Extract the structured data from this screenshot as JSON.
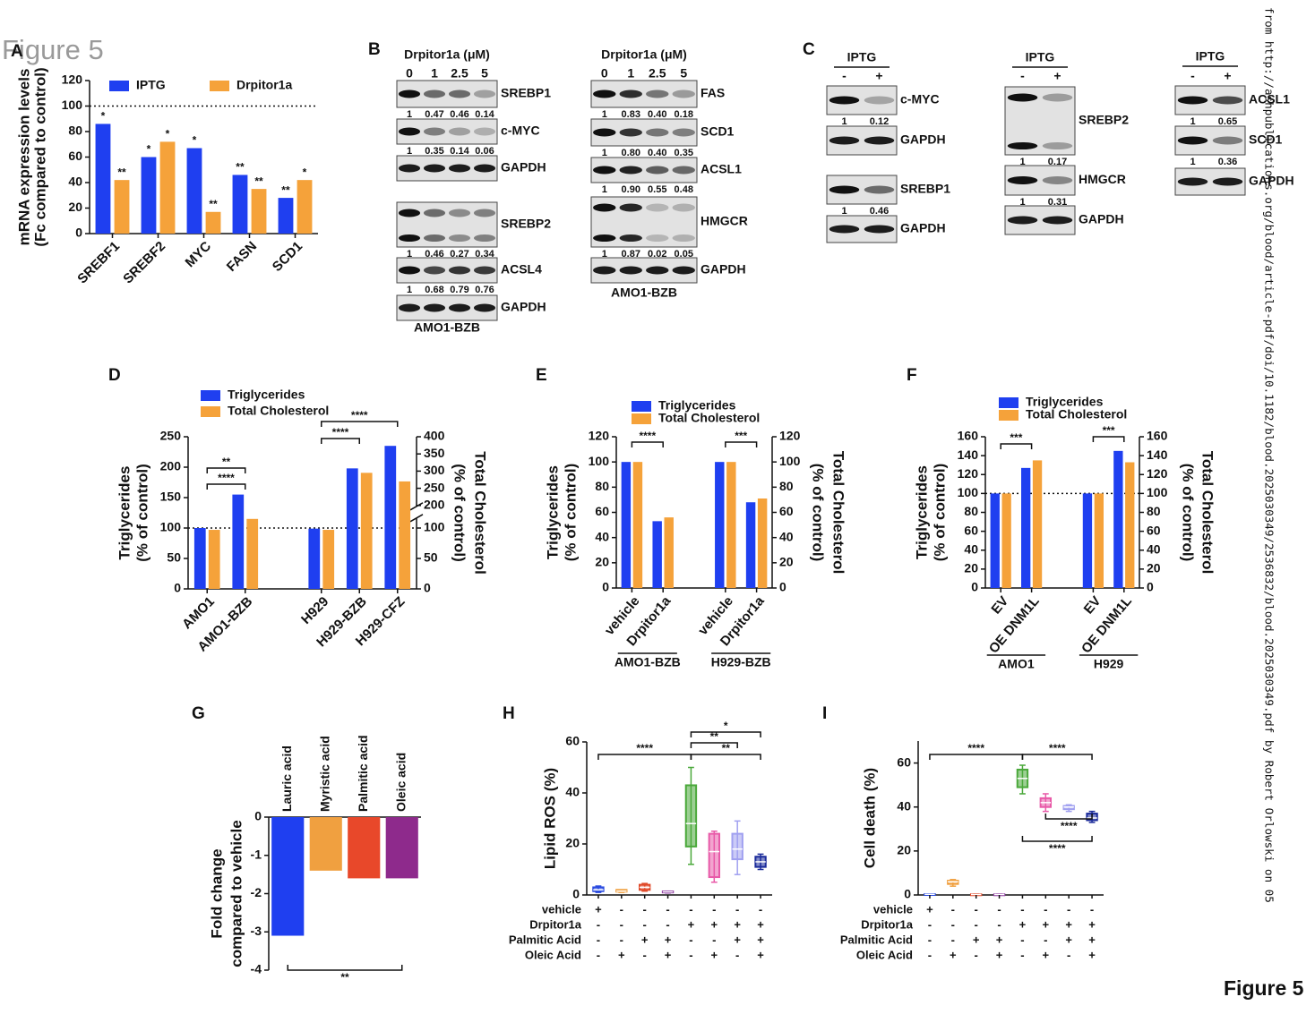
{
  "figure_title": "Figure 5",
  "figure_footer": "Figure 5",
  "watermark": "from http://ashpublications.org/blood/article-pdf/doi/10.1182/blood.2025030349/2536832/blood.2025030349.pdf by Robert Orlowski on 05",
  "panel_labels": [
    "A",
    "B",
    "C",
    "D",
    "E",
    "F",
    "G",
    "H",
    "I"
  ],
  "blots": [
    {
      "header": "Drpitor1a (μM)",
      "lanes": [
        "0",
        "1",
        "2.5",
        "5"
      ],
      "cell_line": "AMO1-BZB",
      "rows": [
        {
          "protein": "SREBP1",
          "quant": [
            "1",
            "0.47",
            "0.46",
            "0.14"
          ]
        },
        {
          "protein": "c-MYC",
          "quant": [
            "1",
            "0.35",
            "0.14",
            "0.06"
          ]
        },
        {
          "protein": "GAPDH"
        },
        {
          "protein": "SREBP2",
          "quant": [
            "1",
            "0.46",
            "0.27",
            "0.34"
          ]
        },
        {
          "protein": "ACSL4",
          "quant": [
            "1",
            "0.68",
            "0.79",
            "0.76"
          ]
        },
        {
          "protein": "GAPDH"
        }
      ]
    },
    {
      "header": "Drpitor1a (μM)",
      "lanes": [
        "0",
        "1",
        "2.5",
        "5"
      ],
      "cell_line": "AMO1-BZB",
      "rows": [
        {
          "protein": "FAS",
          "quant": [
            "1",
            "0.83",
            "0.40",
            "0.18"
          ]
        },
        {
          "protein": "SCD1",
          "quant": [
            "1",
            "0.80",
            "0.40",
            "0.35"
          ]
        },
        {
          "protein": "ACSL1",
          "quant": [
            "1",
            "0.90",
            "0.55",
            "0.48"
          ]
        },
        {
          "protein": "HMGCR",
          "quant": [
            "1",
            "0.87",
            "0.02",
            "0.05"
          ]
        },
        {
          "protein": "GAPDH"
        }
      ]
    },
    {
      "header": "IPTG",
      "lanes": [
        "-",
        "+"
      ],
      "rows": [
        {
          "protein": "c-MYC",
          "quant": [
            "1",
            "0.12"
          ]
        },
        {
          "protein": "GAPDH"
        },
        {
          "protein": "SREBP1",
          "quant": [
            "1",
            "0.46"
          ]
        },
        {
          "protein": "GAPDH"
        }
      ]
    },
    {
      "header": "IPTG",
      "lanes": [
        "-",
        "+"
      ],
      "rows": [
        {
          "protein": "SREBP2",
          "quant": [
            "1",
            "0.17"
          ]
        },
        {
          "protein": "HMGCR",
          "quant": [
            "1",
            "0.31"
          ]
        },
        {
          "protein": "GAPDH"
        }
      ]
    },
    {
      "header": "IPTG",
      "lanes": [
        "-",
        "+"
      ],
      "rows": [
        {
          "protein": "ACSL1",
          "quant": [
            "1",
            "0.65"
          ]
        },
        {
          "protein": "SCD1",
          "quant": [
            "1",
            "0.36"
          ]
        },
        {
          "protein": "GAPDH"
        }
      ]
    }
  ],
  "chart_data": [
    {
      "type": "bar",
      "y_label": [
        "mRNA expression levels",
        "(Fc compared to control)"
      ],
      "categories": [
        "SREBF1",
        "SREBF2",
        "MYC",
        "FASN",
        "SCD1"
      ],
      "series": [
        {
          "name": "IPTG",
          "color": "#1f3ff0",
          "values": [
            86,
            60,
            67,
            46,
            28
          ],
          "significance": [
            "*",
            "*",
            "*",
            "**",
            "**"
          ]
        },
        {
          "name": "Drpitor1a",
          "color": "#f5a23a",
          "values": [
            42,
            72,
            17,
            35,
            42
          ],
          "significance": [
            "**",
            "*",
            "**",
            "**",
            "*"
          ]
        }
      ],
      "ylim": [
        0,
        120
      ],
      "yticks": [
        0,
        20,
        40,
        60,
        80,
        100,
        120
      ],
      "ref_line": 100
    },
    {
      "type": "bar",
      "y_label": [
        "Triglycerides",
        "(% of control)"
      ],
      "y2_label": [
        "Total Cholesterol",
        "(% of control)"
      ],
      "categories": [
        "AMO1",
        "AMO1-BZB",
        null,
        "H929",
        "H929-BZB",
        "H929-CFZ"
      ],
      "series": [
        {
          "name": "Triglycerides",
          "color": "#1f3ff0",
          "values": [
            100,
            155,
            null,
            99,
            198,
            235
          ]
        },
        {
          "name": "Total Cholesterol",
          "color": "#f5a23a",
          "axis": "y2",
          "values": [
            97,
            115,
            null,
            97,
            295,
            270
          ]
        }
      ],
      "ylim": [
        0,
        250
      ],
      "yticks": [
        0,
        50,
        100,
        150,
        200,
        250
      ],
      "y2lim": [
        0,
        400
      ],
      "y2ticks": [
        0,
        50,
        100,
        200,
        250,
        300,
        350,
        400
      ],
      "y2break": [
        115,
        200
      ],
      "ref_line": 100,
      "annotations": [
        "****",
        "**",
        "****",
        "****"
      ]
    },
    {
      "type": "bar",
      "y_label": [
        "Triglycerides",
        "(% of control)"
      ],
      "y2_label": [
        "Total Cholesterol",
        "(% of control)"
      ],
      "categories": [
        "vehicle",
        "Drpitor1a",
        null,
        "vehicle",
        "Drpitor1a"
      ],
      "groups": [
        "AMO1-BZB",
        "H929-BZB"
      ],
      "series": [
        {
          "name": "Triglycerides",
          "color": "#1f3ff0",
          "values": [
            100,
            53,
            null,
            100,
            68
          ]
        },
        {
          "name": "Total Cholesterol",
          "color": "#f5a23a",
          "axis": "y2",
          "values": [
            100,
            56,
            null,
            100,
            71
          ]
        }
      ],
      "ylim": [
        0,
        120
      ],
      "yticks": [
        0,
        20,
        40,
        60,
        80,
        100,
        120
      ],
      "y2lim": [
        0,
        120
      ],
      "y2ticks": [
        0,
        20,
        40,
        60,
        80,
        100,
        120
      ],
      "annotations": [
        "****",
        "***"
      ]
    },
    {
      "type": "bar",
      "y_label": [
        "Triglycerides",
        "(% of control)"
      ],
      "y2_label": [
        "Total Cholesterol",
        "(% of control)"
      ],
      "categories": [
        "EV",
        "OE DNM1L",
        null,
        "EV",
        "OE DNM1L"
      ],
      "groups": [
        "AMO1",
        "H929"
      ],
      "series": [
        {
          "name": "Triglycerides",
          "color": "#1f3ff0",
          "values": [
            100,
            127,
            null,
            100,
            145
          ]
        },
        {
          "name": "Total Cholesterol",
          "color": "#f5a23a",
          "axis": "y2",
          "values": [
            100,
            135,
            null,
            100,
            133
          ]
        }
      ],
      "ylim": [
        0,
        160
      ],
      "yticks": [
        0,
        20,
        40,
        60,
        80,
        100,
        120,
        140,
        160
      ],
      "y2lim": [
        0,
        160
      ],
      "y2ticks": [
        0,
        20,
        40,
        60,
        80,
        100,
        120,
        140,
        160
      ],
      "ref_line": 100,
      "annotations": [
        "***",
        "***"
      ]
    },
    {
      "type": "bar",
      "y_label": [
        "Fold change",
        "compared to vehicle"
      ],
      "categories": [
        "Lauric acid",
        "Myristic acid",
        "Palmitic acid",
        "Oleic acid"
      ],
      "values": [
        -3.1,
        -1.4,
        -1.6,
        -1.6
      ],
      "colors": [
        "#1f3ff0",
        "#f0a040",
        "#e8482a",
        "#8e2a8c"
      ],
      "ylim": [
        -4,
        0
      ],
      "yticks": [
        -4,
        -3,
        -2,
        -1,
        0
      ],
      "annotations": [
        "**"
      ]
    },
    {
      "type": "box",
      "y_label": [
        "Lipid ROS (%)"
      ],
      "boxes": [
        {
          "color": "#2a4be0",
          "min": 1,
          "q1": 1.5,
          "median": 2,
          "q3": 3,
          "max": 3.5
        },
        {
          "color": "#f0a040",
          "min": 1,
          "q1": 1.3,
          "median": 1.5,
          "q3": 2,
          "max": 2
        },
        {
          "color": "#e04a2a",
          "min": 1.5,
          "q1": 2,
          "median": 3,
          "q3": 4,
          "max": 4.5
        },
        {
          "color": "#8e3aa0",
          "min": 0.8,
          "q1": 1,
          "median": 1.2,
          "q3": 1.4,
          "max": 1.5
        },
        {
          "color": "#4aa83a",
          "min": 12,
          "q1": 19,
          "median": 28,
          "q3": 43,
          "max": 50
        },
        {
          "color": "#e85aa8",
          "min": 5,
          "q1": 7,
          "median": 17,
          "q3": 24,
          "max": 25
        },
        {
          "color": "#a0a0f0",
          "min": 8,
          "q1": 14,
          "median": 18,
          "q3": 24,
          "max": 29
        },
        {
          "color": "#1a2a9a",
          "min": 10,
          "q1": 11,
          "median": 13,
          "q3": 15,
          "max": 16
        }
      ],
      "ylim": [
        0,
        60
      ],
      "yticks": [
        0,
        20,
        40,
        60
      ],
      "conditions": [
        {
          "label": "vehicle",
          "signs": [
            "+",
            "-",
            "-",
            "-",
            "-",
            "-",
            "-",
            "-"
          ]
        },
        {
          "label": "Drpitor1a",
          "signs": [
            "-",
            "-",
            "-",
            "-",
            "+",
            "+",
            "+",
            "+"
          ]
        },
        {
          "label": "Palmitic Acid",
          "signs": [
            "-",
            "-",
            "+",
            "+",
            "-",
            "-",
            "+",
            "+"
          ]
        },
        {
          "label": "Oleic Acid",
          "signs": [
            "-",
            "+",
            "-",
            "+",
            "-",
            "+",
            "-",
            "+"
          ]
        }
      ],
      "annotations": [
        "****",
        "*",
        "**",
        "**"
      ]
    },
    {
      "type": "box",
      "y_label": [
        "Cell death (%)"
      ],
      "boxes": [
        {
          "color": "#2a4be0",
          "min": 0,
          "q1": 0.2,
          "median": 0.3,
          "q3": 0.4,
          "max": 0.5
        },
        {
          "color": "#f0a040",
          "min": 4,
          "q1": 5,
          "median": 6,
          "q3": 6.5,
          "max": 7
        },
        {
          "color": "#e04a2a",
          "min": 0,
          "q1": 0.1,
          "median": 0.2,
          "q3": 0.3,
          "max": 0.4
        },
        {
          "color": "#8e3aa0",
          "min": 0,
          "q1": 0.1,
          "median": 0.2,
          "q3": 0.3,
          "max": 0.4
        },
        {
          "color": "#4aa83a",
          "min": 46,
          "q1": 49,
          "median": 53,
          "q3": 57,
          "max": 59
        },
        {
          "color": "#e85aa8",
          "min": 38,
          "q1": 40,
          "median": 42,
          "q3": 44,
          "max": 46
        },
        {
          "color": "#a0a0f0",
          "min": 38,
          "q1": 39,
          "median": 40,
          "q3": 40.5,
          "max": 41
        },
        {
          "color": "#1a2a9a",
          "min": 33,
          "q1": 34,
          "median": 35,
          "q3": 37,
          "max": 38
        }
      ],
      "ylim": [
        0,
        70
      ],
      "yticks": [
        0,
        20,
        40,
        60
      ],
      "conditions": [
        {
          "label": "vehicle",
          "signs": [
            "+",
            "-",
            "-",
            "-",
            "-",
            "-",
            "-",
            "-"
          ]
        },
        {
          "label": "Drpitor1a",
          "signs": [
            "-",
            "-",
            "-",
            "-",
            "+",
            "+",
            "+",
            "+"
          ]
        },
        {
          "label": "Palmitic Acid",
          "signs": [
            "-",
            "-",
            "+",
            "+",
            "-",
            "-",
            "+",
            "+"
          ]
        },
        {
          "label": "Oleic Acid",
          "signs": [
            "-",
            "+",
            "-",
            "+",
            "-",
            "+",
            "-",
            "+"
          ]
        }
      ],
      "annotations": [
        "****",
        "****",
        "****",
        "****"
      ]
    }
  ]
}
